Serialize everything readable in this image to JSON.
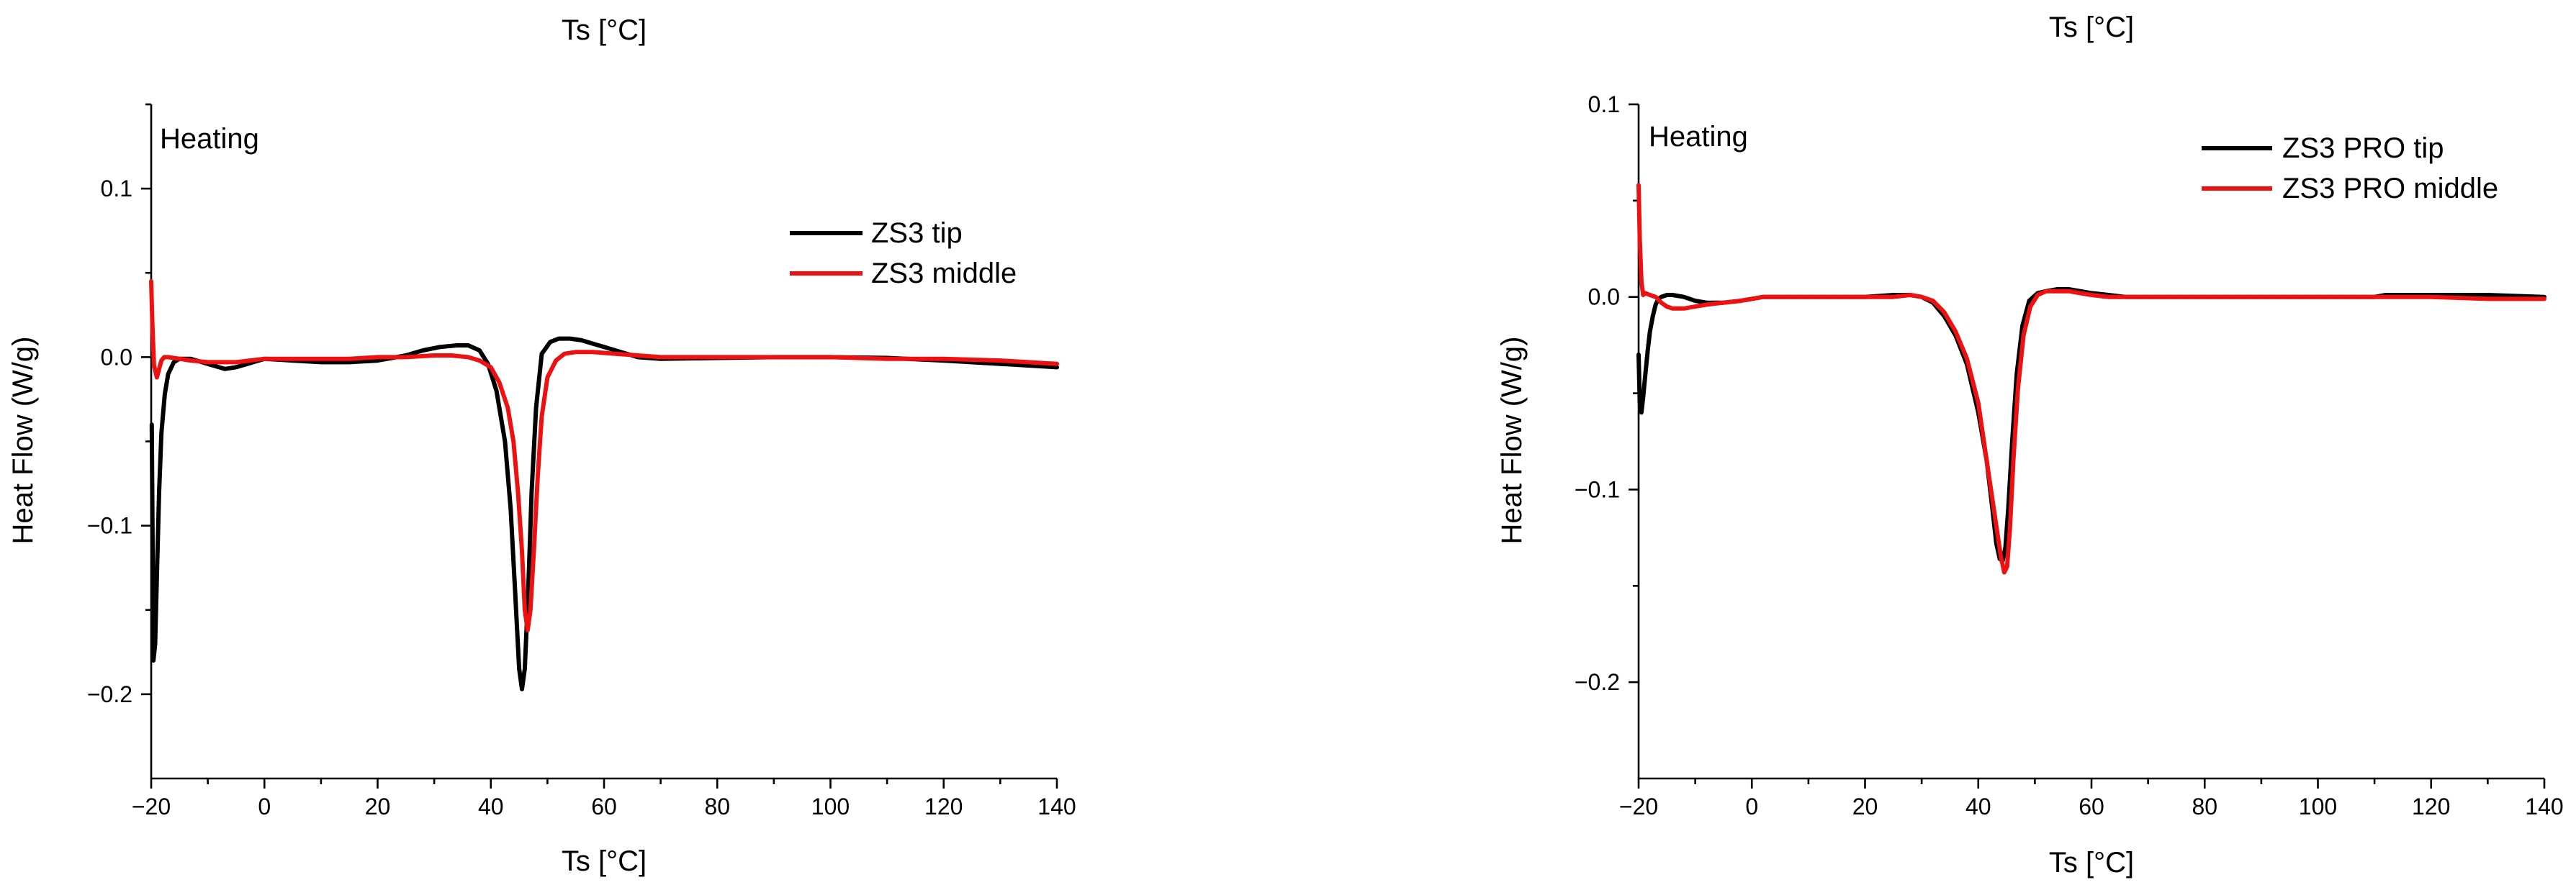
{
  "chart_data": [
    {
      "type": "line",
      "top_title": "Ts [°C]",
      "xlabel": "Ts [°C]",
      "ylabel": "Heat Flow (W/g)",
      "xlim": [
        -20,
        140
      ],
      "ylim": [
        -0.25,
        0.15
      ],
      "x_ticks": [
        -20,
        0,
        20,
        40,
        60,
        80,
        100,
        120,
        140
      ],
      "x_tick_labels": [
        "−20",
        "0",
        "20",
        "40",
        "60",
        "80",
        "100",
        "120",
        "140"
      ],
      "y_ticks": [
        -0.2,
        -0.1,
        0.0,
        0.1
      ],
      "y_tick_labels": [
        "−0.2",
        "−0.1",
        "0.0",
        "0.1"
      ],
      "annotation": "Heating",
      "legend_position": "top-right",
      "series": [
        {
          "name": "ZS3 tip",
          "color": "#000000",
          "x": [
            -19.9,
            -19.6,
            -19.3,
            -19.0,
            -18.6,
            -18.2,
            -17.6,
            -17.0,
            -16.0,
            -15.0,
            -13.0,
            -10.0,
            -7.0,
            -5.0,
            -3.0,
            0,
            5,
            10,
            15,
            20,
            25,
            28,
            31,
            34,
            36,
            38,
            39.5,
            41,
            42.5,
            43.5,
            44.3,
            45.0,
            45.5,
            46.0,
            46.6,
            47.2,
            48.0,
            49.0,
            50.5,
            52.0,
            54.0,
            56.0,
            58.0,
            60.0,
            62.0,
            64.0,
            66.0,
            70,
            80,
            90,
            100,
            110,
            120,
            130,
            140
          ],
          "y": [
            -0.04,
            -0.18,
            -0.17,
            -0.13,
            -0.08,
            -0.045,
            -0.022,
            -0.01,
            -0.003,
            -0.001,
            -0.001,
            -0.004,
            -0.007,
            -0.006,
            -0.004,
            -0.001,
            -0.002,
            -0.003,
            -0.003,
            -0.002,
            0.001,
            0.004,
            0.006,
            0.007,
            0.007,
            0.004,
            -0.004,
            -0.02,
            -0.05,
            -0.09,
            -0.14,
            -0.185,
            -0.197,
            -0.185,
            -0.14,
            -0.08,
            -0.03,
            0.002,
            0.009,
            0.011,
            0.011,
            0.01,
            0.008,
            0.006,
            0.004,
            0.002,
            0.0,
            -0.001,
            -0.0005,
            0.0,
            0.0,
            -0.0005,
            -0.002,
            -0.004,
            -0.006
          ]
        },
        {
          "name": "ZS3 middle",
          "color": "#ee1111",
          "x": [
            -20.0,
            -19.8,
            -19.5,
            -19.0,
            -18.6,
            -18.2,
            -17.7,
            -17.0,
            -15.0,
            -13.0,
            -10.0,
            -5.0,
            0,
            5,
            10,
            15,
            20,
            25,
            30,
            33,
            36,
            38,
            40,
            41.5,
            43,
            44,
            44.8,
            45.5,
            46.0,
            46.5,
            47.0,
            47.6,
            48.3,
            49.0,
            50.0,
            51.5,
            53.0,
            55.0,
            58.0,
            62.0,
            66.0,
            70,
            80,
            90,
            100,
            110,
            120,
            130,
            140
          ],
          "y": [
            0.045,
            0.02,
            -0.005,
            -0.012,
            -0.007,
            -0.002,
            0.0,
            0.0,
            -0.001,
            -0.002,
            -0.003,
            -0.003,
            -0.001,
            -0.001,
            -0.001,
            -0.001,
            0.0,
            0.0,
            0.001,
            0.001,
            0.0,
            -0.002,
            -0.006,
            -0.015,
            -0.03,
            -0.05,
            -0.08,
            -0.115,
            -0.15,
            -0.162,
            -0.15,
            -0.115,
            -0.07,
            -0.035,
            -0.012,
            -0.002,
            0.002,
            0.003,
            0.003,
            0.002,
            0.001,
            0.0,
            0.0,
            0.0,
            0.0,
            -0.001,
            -0.001,
            -0.002,
            -0.004
          ]
        }
      ]
    },
    {
      "type": "line",
      "top_title": "Ts [°C]",
      "xlabel": "Ts [°C]",
      "ylabel": "Heat Flow (W/g)",
      "xlim": [
        -20,
        140
      ],
      "ylim": [
        -0.25,
        0.1
      ],
      "x_ticks": [
        -20,
        0,
        20,
        40,
        60,
        80,
        100,
        120,
        140
      ],
      "x_tick_labels": [
        "−20",
        "0",
        "20",
        "40",
        "60",
        "80",
        "100",
        "120",
        "140"
      ],
      "y_ticks": [
        -0.2,
        -0.1,
        0.0,
        0.1
      ],
      "y_tick_labels": [
        "−0.2",
        "−0.1",
        "0.0",
        "0.1"
      ],
      "annotation": "Heating",
      "legend_position": "top-right",
      "series": [
        {
          "name": "ZS3 PRO tip",
          "color": "#000000",
          "x": [
            -20.0,
            -19.8,
            -19.5,
            -19.2,
            -18.8,
            -18.4,
            -18.0,
            -17.5,
            -17.0,
            -16.5,
            -16.0,
            -15.0,
            -14.0,
            -12.0,
            -10.0,
            -8.0,
            -5.0,
            -2.0,
            0,
            2,
            5,
            10,
            15,
            20,
            25,
            28,
            30,
            32,
            34,
            36,
            38,
            40,
            41.5,
            42.5,
            43.2,
            43.8,
            44.3,
            44.8,
            45.3,
            46.0,
            46.8,
            47.8,
            49.0,
            50.5,
            52.0,
            54.0,
            56.0,
            58.0,
            60.0,
            63.0,
            66.0,
            70,
            80,
            90,
            100,
            110,
            112,
            120,
            130,
            140
          ],
          "y": [
            -0.03,
            -0.055,
            -0.06,
            -0.052,
            -0.04,
            -0.028,
            -0.018,
            -0.01,
            -0.004,
            -0.001,
            0.0,
            0.001,
            0.001,
            0.0,
            -0.002,
            -0.003,
            -0.003,
            -0.002,
            -0.001,
            0.0,
            0.0,
            0.0,
            0.0,
            0.0,
            0.001,
            0.001,
            0.0,
            -0.003,
            -0.01,
            -0.02,
            -0.035,
            -0.06,
            -0.085,
            -0.11,
            -0.128,
            -0.136,
            -0.137,
            -0.13,
            -0.11,
            -0.075,
            -0.04,
            -0.015,
            -0.002,
            0.002,
            0.003,
            0.004,
            0.004,
            0.003,
            0.002,
            0.001,
            0.0,
            0.0,
            0.0,
            0.0,
            0.0,
            0.0,
            0.001,
            0.001,
            0.001,
            0.0
          ]
        },
        {
          "name": "ZS3 PRO middle",
          "color": "#ee1111",
          "x": [
            -20.0,
            -19.8,
            -19.5,
            -19.2,
            -18.8,
            -18.0,
            -17.0,
            -16.0,
            -15.0,
            -14.0,
            -12.0,
            -10.0,
            -8.0,
            -5.0,
            -2.0,
            0,
            2,
            5,
            10,
            15,
            20,
            25,
            28,
            30,
            32,
            34,
            36,
            38,
            40,
            41.5,
            43,
            44,
            44.6,
            45.1,
            45.6,
            46.2,
            47.0,
            48.0,
            49.2,
            50.5,
            52.0,
            54.0,
            56.0,
            58.0,
            60.0,
            63.0,
            66.0,
            70,
            80,
            90,
            100,
            110,
            120,
            130,
            140
          ],
          "y": [
            0.058,
            0.03,
            0.008,
            0.001,
            0.002,
            0.001,
            0.0,
            -0.003,
            -0.005,
            -0.006,
            -0.006,
            -0.005,
            -0.004,
            -0.003,
            -0.002,
            -0.001,
            0.0,
            0.0,
            0.0,
            0.0,
            0.0,
            0.0,
            0.001,
            0.0,
            -0.002,
            -0.008,
            -0.018,
            -0.032,
            -0.055,
            -0.085,
            -0.115,
            -0.135,
            -0.143,
            -0.14,
            -0.12,
            -0.085,
            -0.048,
            -0.02,
            -0.005,
            0.001,
            0.003,
            0.003,
            0.003,
            0.002,
            0.001,
            0.0,
            0.0,
            0.0,
            0.0,
            0.0,
            0.0,
            0.0,
            0.0,
            -0.001,
            -0.001
          ]
        }
      ]
    }
  ]
}
